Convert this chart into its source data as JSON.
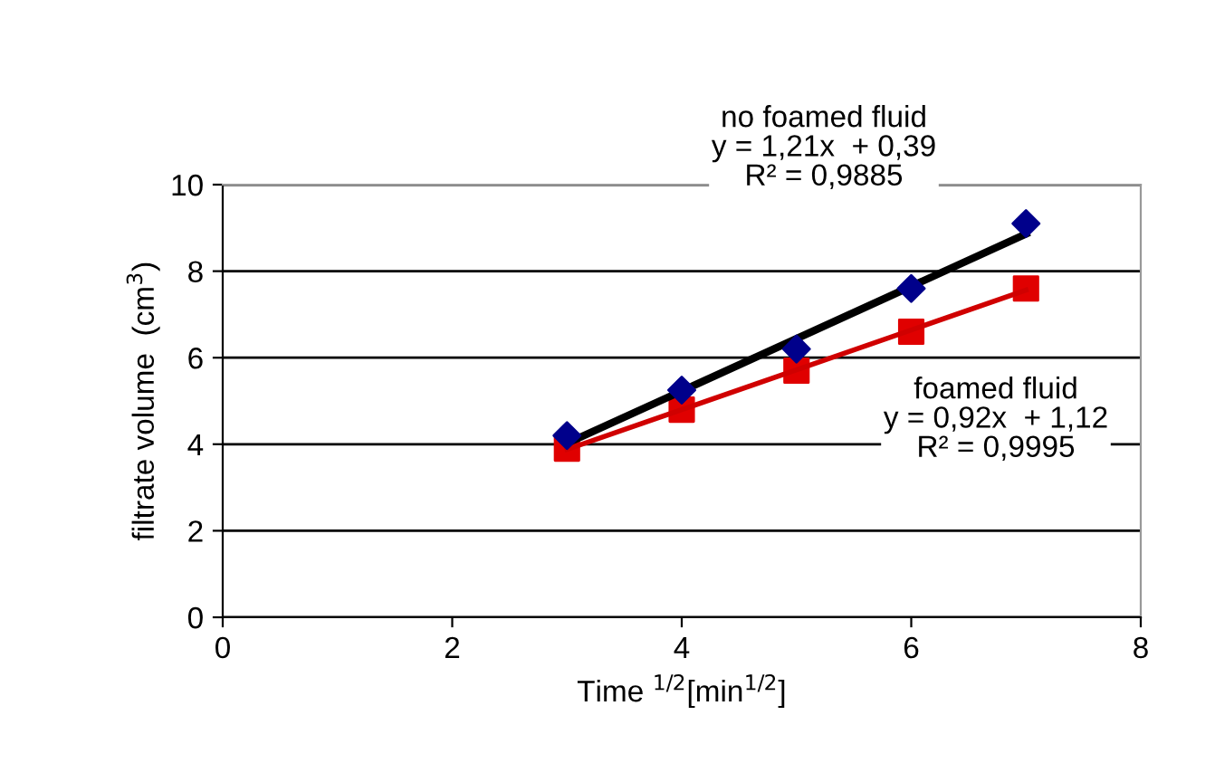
{
  "chart_data": {
    "type": "scatter",
    "xlabel": "Time $^{1/2}$[min$^{1/2}$]",
    "ylabel": "filtrate volume  (cm$^{3}$)",
    "xlim": [
      0,
      8
    ],
    "xticks": [
      0,
      2,
      4,
      6,
      8
    ],
    "ylim": [
      0,
      10
    ],
    "yticks": [
      0,
      2,
      4,
      6,
      8,
      10
    ],
    "grid": "y",
    "legend": false,
    "series": [
      {
        "type": "line",
        "color": "#000000",
        "x": [
          3,
          7
        ],
        "values": [
          4.02,
          8.86
        ],
        "marker": "none"
      },
      {
        "type": "line",
        "color": "#d00000",
        "x": [
          3,
          7
        ],
        "values": [
          3.88,
          7.56
        ],
        "marker": "none"
      },
      {
        "color": "#00008b",
        "marker": "diamond",
        "x": [
          3,
          4,
          5,
          6,
          7
        ],
        "values": [
          4.2,
          5.25,
          6.2,
          7.6,
          9.1
        ]
      },
      {
        "color": "#e00000",
        "marker": "square",
        "x": [
          3,
          4,
          5,
          6,
          7
        ],
        "values": [
          3.9,
          4.8,
          5.7,
          6.6,
          7.6
        ]
      }
    ],
    "annotations": [
      "no foamed fluid\ny = 1,21x  + 0,39\nR² = 0,9885",
      "foamed fluid\ny = 0,92x  + 1,12\nR² = 0,9995"
    ]
  }
}
